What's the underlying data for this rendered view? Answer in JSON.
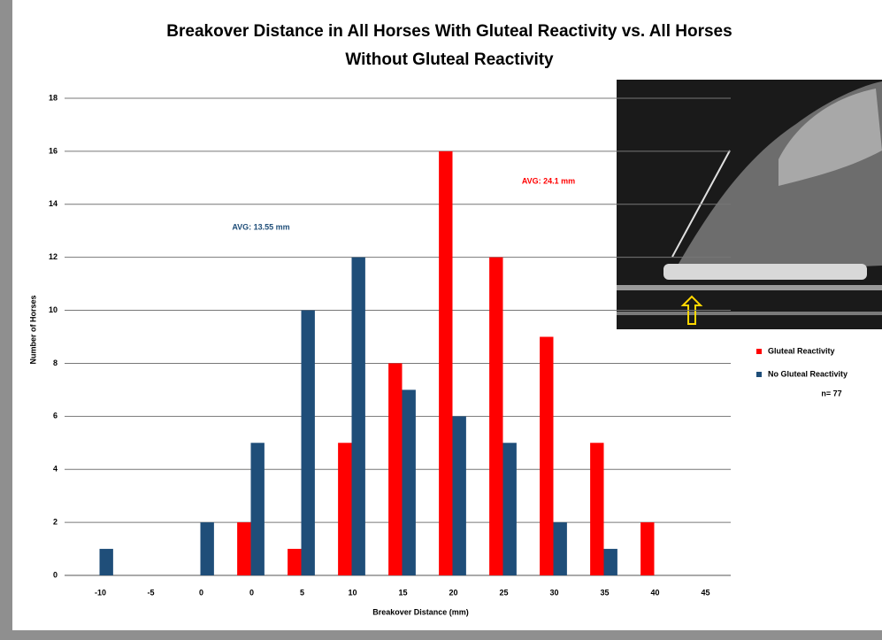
{
  "chart_data": {
    "type": "bar",
    "title": [
      "Breakover Distance in All Horses With Gluteal Reactivity vs.  All Horses",
      "Without Gluteal Reactivity"
    ],
    "x_label": "Breakover Distance (mm)",
    "y_label": "Number of Horses",
    "categories": [
      "-10",
      "-5",
      "0",
      "0",
      "5",
      "10",
      "15",
      "20",
      "25",
      "30",
      "35",
      "40",
      "45"
    ],
    "series": [
      {
        "name": "Gluteal Reactivity",
        "color": "#ff0000",
        "values": [
          0,
          0,
          0,
          2,
          1,
          5,
          8,
          16,
          12,
          9,
          5,
          2,
          0
        ]
      },
      {
        "name": "No Gluteal Reactivity",
        "color": "#1f4e79",
        "values": [
          1,
          0,
          2,
          5,
          10,
          12,
          7,
          6,
          5,
          2,
          1,
          0,
          0
        ]
      }
    ],
    "ylim": [
      0,
      18
    ],
    "yticks": [
      0,
      2,
      4,
      6,
      8,
      10,
      12,
      14,
      16,
      18
    ],
    "grid": true,
    "annotations": [
      {
        "text": "AVG: 13.55 mm",
        "color": "#1f4e79"
      },
      {
        "text": "AVG: 24.1 mm",
        "color": "#ff0000"
      },
      {
        "text": "n= 77",
        "color": "#000000"
      }
    ]
  }
}
